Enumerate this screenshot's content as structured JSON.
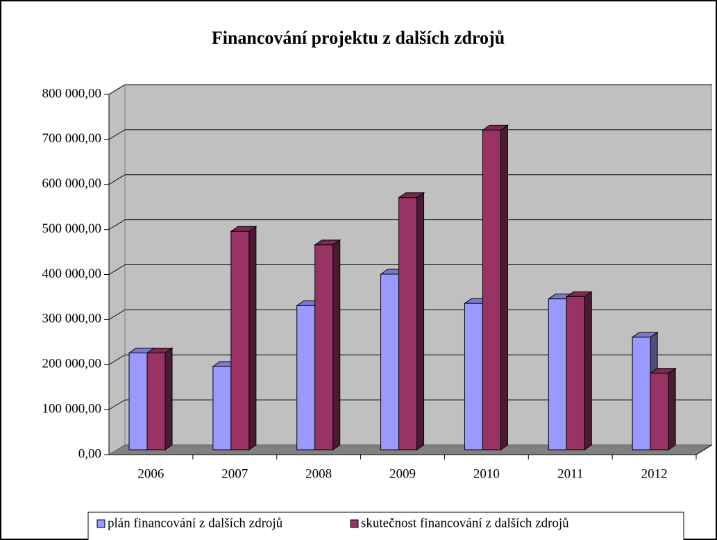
{
  "chart_data": {
    "type": "bar3d",
    "title": "Financování projektu z dalších zdrojů",
    "categories": [
      "2006",
      "2007",
      "2008",
      "2009",
      "2010",
      "2011",
      "2012"
    ],
    "series": [
      {
        "name": "plán financování z dalších zdrojů",
        "color": "#9999ff",
        "values": [
          215000,
          185000,
          320000,
          390000,
          325000,
          335000,
          250000
        ]
      },
      {
        "name": "skutečnost financování z dalších zdrojů",
        "color": "#993366",
        "values": [
          215000,
          485000,
          455000,
          560000,
          710000,
          340000,
          170000
        ]
      }
    ],
    "ylim": [
      0,
      800000
    ],
    "yticks": [
      {
        "value": 0,
        "label": "0,00"
      },
      {
        "value": 100000,
        "label": "100 000,00"
      },
      {
        "value": 200000,
        "label": "200 000,00"
      },
      {
        "value": 300000,
        "label": "300 000,00"
      },
      {
        "value": 400000,
        "label": "400 000,00"
      },
      {
        "value": 500000,
        "label": "500 000,00"
      },
      {
        "value": 600000,
        "label": "600 000,00"
      },
      {
        "value": 700000,
        "label": "700 000,00"
      },
      {
        "value": 800000,
        "label": "800 000,00"
      }
    ],
    "grid": true,
    "legend": "bottom"
  }
}
